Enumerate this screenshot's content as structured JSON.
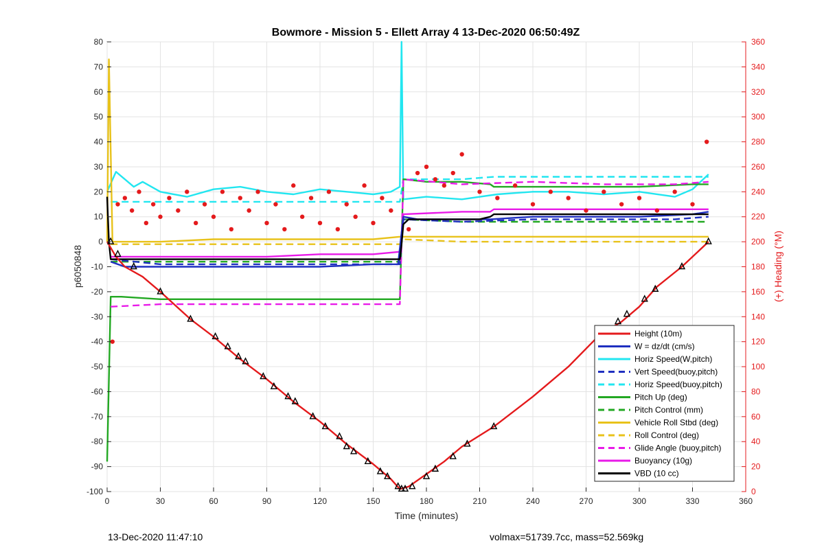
{
  "footer": {
    "left": "13-Dec-2020 11:47:10",
    "right": "volmax=51739.7cc, mass=52.569kg"
  },
  "chart_data": {
    "type": "line",
    "title": "Bowmore - Mission 5 - Ellett Array 4 13-Dec-2020 06:50:49Z",
    "xlabel": "Time (minutes)",
    "ylabel": "p6050848",
    "y2label": "(+) Heading (°M)",
    "xlim": [
      0,
      360
    ],
    "ylim": [
      -100,
      80
    ],
    "y2lim": [
      0,
      360
    ],
    "xticks": [
      0,
      30,
      60,
      90,
      120,
      150,
      180,
      210,
      240,
      270,
      300,
      330,
      360
    ],
    "yticks": [
      80,
      70,
      60,
      50,
      40,
      30,
      20,
      10,
      0,
      -10,
      -20,
      -30,
      -40,
      -50,
      -60,
      -70,
      -80,
      -90,
      -100
    ],
    "y2ticks": [
      360,
      340,
      320,
      300,
      280,
      260,
      240,
      220,
      200,
      180,
      160,
      140,
      120,
      100,
      80,
      60,
      40,
      20,
      0
    ],
    "grid": true,
    "legend_position": "bottom-right",
    "colors": {
      "red": "#e41a1c",
      "blue": "#1f2fc0",
      "cyan": "#22e6f0",
      "green": "#22a822",
      "yellow": "#e8c21a",
      "magenta": "#e81ae8",
      "black": "#000000"
    },
    "series": [
      {
        "name": "Height (10m)",
        "color": "#e41a1c",
        "style": "solid",
        "x": [
          0,
          5,
          10,
          20,
          30,
          47,
          60,
          75,
          90,
          105,
          120,
          135,
          150,
          160,
          165,
          170,
          180,
          190,
          200,
          218,
          240,
          260,
          278,
          290,
          300,
          310,
          324,
          339
        ],
        "y": [
          0,
          -6,
          -10,
          -14,
          -20,
          -31,
          -38,
          -47,
          -55,
          -64,
          -72,
          -81,
          -89,
          -95,
          -99,
          -98,
          -93,
          -88,
          -82,
          -74,
          -62,
          -50,
          -37,
          -32,
          -26,
          -18,
          -10,
          0
        ]
      },
      {
        "name": "W = dz/dt (cm/s)",
        "color": "#1f2fc0",
        "style": "solid",
        "x": [
          2,
          10,
          30,
          60,
          90,
          120,
          150,
          164,
          167,
          175,
          190,
          216,
          240,
          270,
          300,
          330,
          339
        ],
        "y": [
          -8,
          -10,
          -10,
          -10,
          -10,
          -10,
          -9,
          -9,
          10,
          9,
          9,
          9,
          10,
          10,
          10,
          11,
          12
        ]
      },
      {
        "name": "Horiz Speed(W,pitch)",
        "color": "#22e6f0",
        "style": "solid",
        "x": [
          0,
          5,
          10,
          15,
          20,
          30,
          45,
          60,
          75,
          90,
          105,
          120,
          135,
          150,
          160,
          165,
          166,
          167,
          180,
          200,
          220,
          240,
          260,
          280,
          300,
          320,
          330,
          339
        ],
        "y": [
          20,
          28,
          25,
          22,
          24,
          20,
          18,
          21,
          22,
          20,
          19,
          21,
          20,
          19,
          20,
          22,
          80,
          17,
          18,
          17,
          19,
          20,
          20,
          19,
          20,
          18,
          21,
          27
        ]
      },
      {
        "name": "Vert Speed(buoy,pitch)",
        "color": "#1f2fc0",
        "style": "dashed",
        "x": [
          2,
          30,
          60,
          90,
          120,
          150,
          165,
          167,
          200,
          240,
          280,
          320,
          339
        ],
        "y": [
          -7,
          -9,
          -9,
          -9,
          -9,
          -9,
          -9,
          9,
          8,
          9,
          9,
          9,
          10
        ]
      },
      {
        "name": "Horiz Speed(buoy,pitch)",
        "color": "#22e6f0",
        "style": "dashed",
        "x": [
          2,
          30,
          60,
          90,
          120,
          150,
          165,
          167,
          200,
          218,
          240,
          280,
          320,
          339
        ],
        "y": [
          16,
          16,
          16,
          16,
          16,
          16,
          16,
          25,
          25,
          26,
          26,
          26,
          26,
          26
        ]
      },
      {
        "name": "Pitch Up (deg)",
        "color": "#22a822",
        "style": "solid",
        "x": [
          0,
          2,
          8,
          30,
          60,
          90,
          120,
          150,
          165,
          167,
          180,
          200,
          216,
          218,
          240,
          270,
          300,
          330,
          339
        ],
        "y": [
          -88,
          -22,
          -22,
          -23,
          -23,
          -23,
          -23,
          -23,
          -23,
          25,
          24,
          24,
          23,
          22,
          22,
          22,
          22,
          23,
          23
        ]
      },
      {
        "name": "Pitch Control (mm)",
        "color": "#22a822",
        "style": "dashed",
        "x": [
          2,
          30,
          60,
          90,
          120,
          150,
          165,
          167,
          200,
          240,
          280,
          320,
          339
        ],
        "y": [
          -8,
          -8,
          -8,
          -8,
          -8,
          -8,
          -8,
          9,
          8,
          8,
          8,
          8,
          8
        ]
      },
      {
        "name": "Vehicle Roll Stbd (deg)",
        "color": "#e8c21a",
        "style": "solid",
        "x": [
          0,
          1,
          3,
          10,
          30,
          60,
          90,
          120,
          150,
          165,
          167,
          175,
          200,
          240,
          280,
          300,
          320,
          339
        ],
        "y": [
          0,
          73,
          0,
          0,
          0,
          1,
          1,
          1,
          1,
          2,
          2,
          2,
          2,
          2,
          2,
          2,
          2,
          2
        ]
      },
      {
        "name": "Roll Control (deg)",
        "color": "#e8c21a",
        "style": "dashed",
        "x": [
          2,
          30,
          60,
          90,
          120,
          150,
          165,
          167,
          200,
          240,
          280,
          320,
          339
        ],
        "y": [
          -1,
          -1,
          -1,
          -1,
          -1,
          -1,
          -1,
          1,
          0,
          0,
          0,
          0,
          0
        ]
      },
      {
        "name": "Glide Angle (buoy,pitch)",
        "color": "#e81ae8",
        "style": "dashed",
        "x": [
          2,
          30,
          60,
          90,
          120,
          150,
          165,
          167,
          200,
          240,
          280,
          320,
          339
        ],
        "y": [
          -26,
          -25,
          -25,
          -25,
          -25,
          -25,
          -25,
          25,
          23,
          24,
          23,
          23,
          24
        ]
      },
      {
        "name": "Buoyancy (10g)",
        "color": "#e81ae8",
        "style": "solid",
        "x": [
          2,
          30,
          60,
          90,
          120,
          150,
          165,
          167,
          200,
          216,
          218,
          240,
          280,
          320,
          339
        ],
        "y": [
          -6,
          -6,
          -6,
          -6,
          -5,
          -5,
          -4,
          11,
          12,
          12,
          13,
          13,
          13,
          13,
          13
        ]
      },
      {
        "name": "VBD (10 cc)",
        "color": "#000000",
        "style": "solid",
        "x": [
          0,
          1,
          2,
          30,
          60,
          90,
          120,
          150,
          165,
          166,
          167,
          170,
          180,
          200,
          210,
          216,
          218,
          240,
          280,
          320,
          339
        ],
        "y": [
          18,
          0,
          -7,
          -7,
          -7,
          -7,
          -7,
          -7,
          -7,
          -1,
          7,
          9,
          9,
          9,
          9,
          10,
          11,
          11,
          11,
          11,
          11
        ]
      }
    ],
    "heading_scatter": {
      "color": "#e41a1c",
      "axis": "right",
      "x": [
        3,
        6,
        10,
        14,
        18,
        22,
        26,
        30,
        35,
        40,
        45,
        50,
        55,
        60,
        65,
        70,
        75,
        80,
        85,
        90,
        95,
        100,
        105,
        110,
        115,
        120,
        125,
        130,
        135,
        140,
        145,
        150,
        155,
        160,
        170,
        175,
        180,
        185,
        190,
        195,
        200,
        210,
        220,
        230,
        240,
        250,
        260,
        270,
        280,
        290,
        300,
        310,
        320,
        330,
        338
      ],
      "y": [
        120,
        230,
        235,
        225,
        240,
        215,
        230,
        220,
        235,
        225,
        240,
        215,
        230,
        220,
        240,
        210,
        235,
        225,
        240,
        215,
        230,
        210,
        245,
        220,
        235,
        215,
        240,
        210,
        230,
        220,
        245,
        215,
        235,
        225,
        210,
        255,
        260,
        250,
        245,
        255,
        270,
        240,
        235,
        245,
        230,
        240,
        235,
        225,
        240,
        230,
        235,
        225,
        240,
        230,
        280
      ]
    },
    "markers": {
      "shape": "triangle",
      "color": "#000000",
      "x": [
        2,
        6,
        15,
        30,
        47,
        61,
        68,
        74,
        78,
        88,
        94,
        102,
        106,
        116,
        123,
        131,
        135,
        139,
        147,
        154,
        158,
        164,
        166,
        168,
        172,
        180,
        185,
        195,
        203,
        218,
        278,
        288,
        293,
        303,
        309,
        324,
        339
      ],
      "y": [
        0,
        -5,
        -10,
        -20,
        -31,
        -38,
        -42,
        -46,
        -48,
        -54,
        -58,
        -62,
        -64,
        -70,
        -74,
        -78,
        -82,
        -84,
        -88,
        -92,
        -94,
        -98,
        -99,
        -99,
        -98,
        -94,
        -91,
        -86,
        -81,
        -74,
        -37,
        -32,
        -29,
        -23,
        -19,
        -10,
        0
      ]
    }
  }
}
